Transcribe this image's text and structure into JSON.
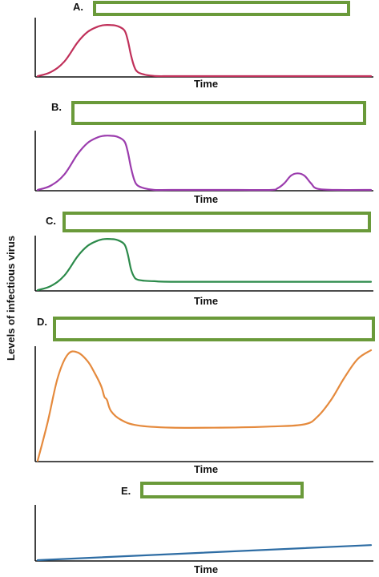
{
  "ylabel": "Levels of infectious virus",
  "redaction_color": "#6a9a3a",
  "chart_data": [
    {
      "type": "line",
      "panel_label": "A.",
      "xlabel": "Time",
      "ylabel": "",
      "series": [
        {
          "color": "#c0305a",
          "x": [
            0,
            4,
            8,
            12,
            15,
            18,
            20,
            22,
            24,
            26,
            27,
            28,
            29,
            30,
            32,
            34,
            36,
            40,
            50,
            70,
            100
          ],
          "y": [
            0,
            8,
            28,
            65,
            85,
            95,
            98,
            98,
            96,
            88,
            70,
            40,
            18,
            8,
            3,
            1,
            0,
            0,
            0,
            0,
            0
          ]
        }
      ]
    },
    {
      "type": "line",
      "panel_label": "B.",
      "xlabel": "Time",
      "ylabel": "",
      "series": [
        {
          "color": "#9b3cad",
          "x": [
            0,
            4,
            8,
            12,
            15,
            18,
            20,
            22,
            24,
            26,
            27,
            28,
            29,
            30,
            32,
            35,
            40,
            60,
            70,
            72,
            74,
            76,
            78,
            80,
            82,
            84,
            90,
            100
          ],
          "y": [
            0,
            8,
            28,
            65,
            85,
            95,
            98,
            98,
            96,
            88,
            70,
            40,
            18,
            8,
            3,
            0,
            0,
            0,
            0,
            3,
            12,
            26,
            30,
            26,
            12,
            2,
            0,
            0
          ]
        }
      ]
    },
    {
      "type": "line",
      "panel_label": "C.",
      "xlabel": "Time",
      "ylabel": "",
      "series": [
        {
          "color": "#2b8a4a",
          "x": [
            0,
            4,
            8,
            12,
            15,
            18,
            20,
            22,
            24,
            26,
            27,
            28,
            29,
            30,
            32,
            35,
            40,
            60,
            80,
            100
          ],
          "y": [
            0,
            8,
            28,
            65,
            85,
            95,
            98,
            98,
            96,
            88,
            70,
            40,
            25,
            20,
            18,
            17,
            16,
            16,
            16,
            16
          ]
        }
      ]
    },
    {
      "type": "line",
      "panel_label": "D.",
      "xlabel": "Time",
      "ylabel": "",
      "series": [
        {
          "color": "#e58a3d",
          "x": [
            0,
            3,
            6,
            9,
            12,
            15,
            17,
            19,
            20,
            20.8,
            22,
            25,
            30,
            40,
            55,
            70,
            80,
            84,
            88,
            92,
            96,
            100
          ],
          "y": [
            0,
            35,
            75,
            96,
            98,
            90,
            80,
            68,
            58,
            55,
            45,
            37,
            32,
            30,
            30,
            31,
            33,
            40,
            55,
            75,
            92,
            100
          ]
        }
      ]
    },
    {
      "type": "line",
      "panel_label": "E.",
      "xlabel": "Time",
      "ylabel": "",
      "series": [
        {
          "color": "#2e6da4",
          "x": [
            0,
            100
          ],
          "y": [
            0,
            28
          ]
        }
      ]
    }
  ]
}
